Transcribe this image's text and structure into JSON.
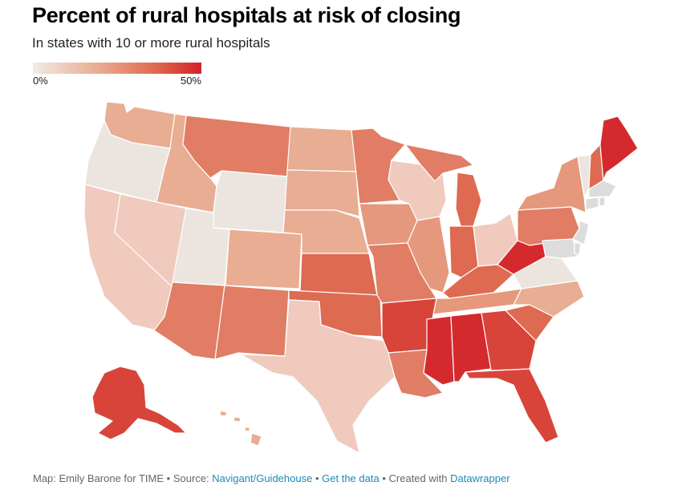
{
  "header": {
    "title": "Percent of rural hospitals at risk of closing",
    "subtitle": "In states with 10 or more rural hospitals"
  },
  "legend": {
    "min_label": "0%",
    "max_label": "50%",
    "colors": [
      "#f0ebe6",
      "#e9a98e",
      "#e06448",
      "#d4202b"
    ]
  },
  "map": {
    "no_data_color": "#dcdcdc",
    "color_scale": {
      "c0": "#ece5df",
      "c1": "#efcabd",
      "c2": "#e8ad92",
      "c3": "#e5987c",
      "c4": "#e07d64",
      "c5": "#dd6a51",
      "c6": "#d8443a",
      "c7": "#d42a2e"
    }
  },
  "footer": {
    "credit": "Map: Emily Barone for TIME",
    "source_prefix": "Source:",
    "source_link": "Navigant/Guidehouse",
    "data_link": "Get the data",
    "created_prefix": "Created with",
    "created_link": "Datawrapper",
    "separator": "•"
  }
}
